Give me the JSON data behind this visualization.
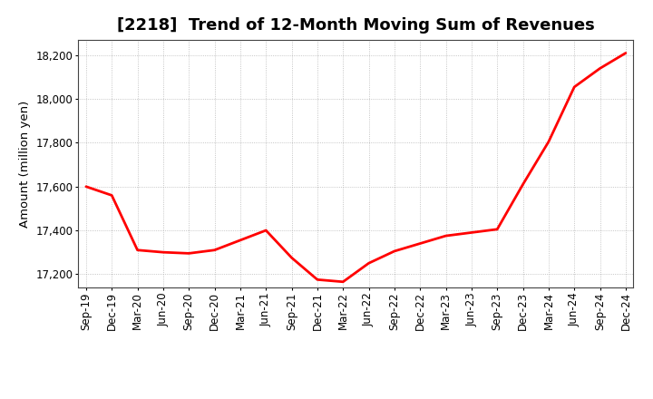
{
  "title": "[2218]  Trend of 12-Month Moving Sum of Revenues",
  "ylabel": "Amount (million yen)",
  "line_color": "#FF0000",
  "line_width": 2.0,
  "background_color": "#FFFFFF",
  "grid_color": "#999999",
  "x_labels": [
    "Sep-19",
    "Dec-19",
    "Mar-20",
    "Jun-20",
    "Sep-20",
    "Dec-20",
    "Mar-21",
    "Jun-21",
    "Sep-21",
    "Dec-21",
    "Mar-22",
    "Jun-22",
    "Sep-22",
    "Dec-22",
    "Mar-23",
    "Jun-23",
    "Sep-23",
    "Dec-23",
    "Mar-24",
    "Jun-24",
    "Sep-24",
    "Dec-24"
  ],
  "y_values": [
    17600,
    17560,
    17310,
    17300,
    17295,
    17310,
    17355,
    17400,
    17275,
    17175,
    17165,
    17250,
    17305,
    17340,
    17375,
    17390,
    17405,
    17610,
    17805,
    18055,
    18140,
    18210
  ],
  "ylim": [
    17140,
    18270
  ],
  "yticks": [
    17200,
    17400,
    17600,
    17800,
    18000,
    18200
  ],
  "title_fontsize": 13,
  "axis_fontsize": 9.5,
  "tick_fontsize": 8.5
}
